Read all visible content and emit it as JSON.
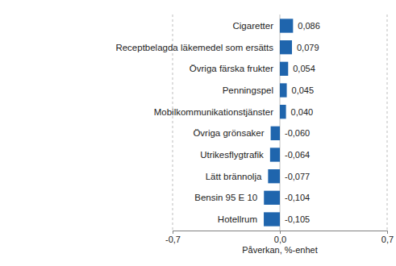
{
  "chart_data": {
    "type": "bar",
    "orientation": "horizontal",
    "categories": [
      "Cigaretter",
      "Receptbelagda läkemedel som ersätts",
      "Övriga färska frukter",
      "Penningspel",
      "Mobilkommunikationstjänster",
      "Övriga grönsaker",
      "Utrikesflygtrafik",
      "Lätt brännolja",
      "Bensin 95 E 10",
      "Hotellrum"
    ],
    "values": [
      0.086,
      0.079,
      0.054,
      0.045,
      0.04,
      -0.06,
      -0.064,
      -0.077,
      -0.104,
      -0.105
    ],
    "value_labels": [
      "0,086",
      "0,079",
      "0,054",
      "0,045",
      "0,040",
      "-0,060",
      "-0,064",
      "-0,077",
      "-0,104",
      "-0,105"
    ],
    "data_labels": true,
    "color": "#1f65ad",
    "x_label": "Påverkan, %-enhet",
    "xlim": [
      -0.7,
      0.7
    ],
    "xticks": [
      {
        "value": -0.7,
        "label": "-0,7"
      },
      {
        "value": 0,
        "label": "0,0"
      },
      {
        "value": 0.7,
        "label": "0,7"
      }
    ],
    "grid": true
  }
}
